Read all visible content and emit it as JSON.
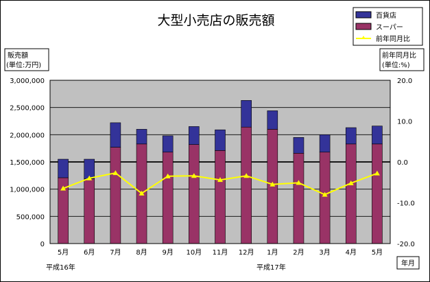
{
  "chart_data": {
    "type": "bar",
    "title": "大型小売店の販売額",
    "ylabel_left": [
      "販売額",
      "(単位:万円)"
    ],
    "ylabel_right": [
      "前年同月比",
      "(単位:%)"
    ],
    "xlabel": "年月",
    "era_labels": [
      "平成16年",
      "平成17年"
    ],
    "categories": [
      "5月",
      "6月",
      "7月",
      "8月",
      "9月",
      "10月",
      "11月",
      "12月",
      "1月",
      "2月",
      "3月",
      "4月",
      "5月"
    ],
    "ylim": [
      0,
      3000000
    ],
    "y2lim": [
      -20,
      20
    ],
    "yticks": [
      "0",
      "500,000",
      "1,000,000",
      "1,500,000",
      "2,000,000",
      "2,500,000",
      "3,000,000"
    ],
    "y2ticks": [
      "20.0",
      "10.0",
      "0.0",
      "-10.0",
      "-20.0"
    ],
    "stacked": true,
    "series": [
      {
        "name": "スーパー",
        "type": "bar",
        "color": "#993366",
        "values": [
          1210000,
          1190000,
          1770000,
          1830000,
          1680000,
          1820000,
          1710000,
          2140000,
          2100000,
          1660000,
          1680000,
          1830000,
          1830000
        ]
      },
      {
        "name": "百貨店",
        "type": "bar",
        "color": "#333399",
        "values": [
          340000,
          360000,
          450000,
          270000,
          300000,
          330000,
          380000,
          490000,
          340000,
          290000,
          320000,
          300000,
          330000
        ]
      },
      {
        "name": "前年同月比",
        "type": "line",
        "color": "#ffff00",
        "axis": "right",
        "values": [
          -6.5,
          -4.0,
          -2.7,
          -7.7,
          -3.5,
          -3.4,
          -4.4,
          -3.4,
          -5.5,
          -5.1,
          -8.0,
          -5.2,
          -2.8
        ]
      }
    ],
    "legend": [
      "百貨店",
      "スーパー",
      "前年同月比"
    ],
    "legend_position": "top-right",
    "grid": true
  }
}
